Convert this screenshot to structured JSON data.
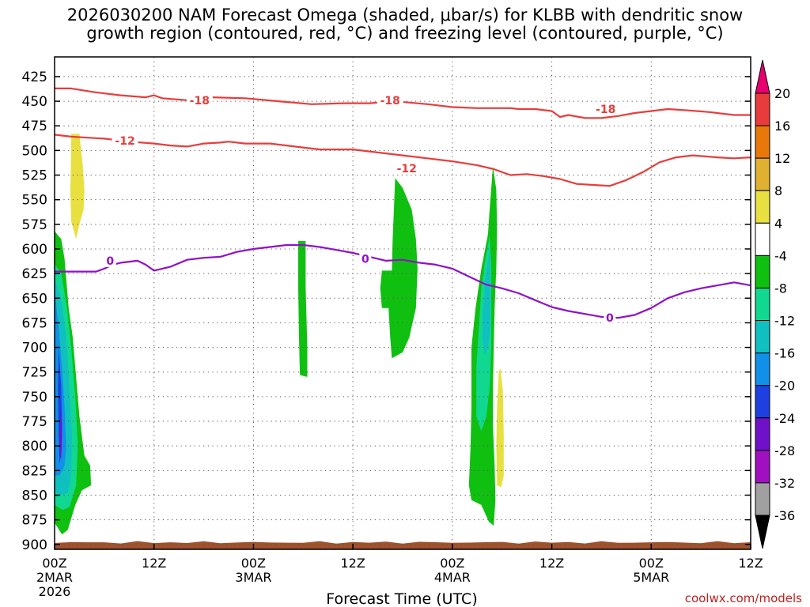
{
  "title": {
    "line1": "2026030200 NAM Forecast Omega (shaded, μbar/s) for KLBB with dendritic snow",
    "line2": "growth region (contoured, red, °C) and freezing level (contoured, purple, °C)"
  },
  "credit": "coolwx.com/models",
  "chart_data": {
    "type": "time-height cross section",
    "title": "2026030200 NAM Forecast Omega (shaded, μbar/s) for KLBB with dendritic snow growth region (contoured, red, °C) and freezing level (contoured, purple, °C)",
    "xlabel": "Forecast Time (UTC)",
    "ylabel": "",
    "xlim_hours": [
      0,
      84
    ],
    "ylim_mb": [
      405,
      905
    ],
    "y_ticks": [
      "425",
      "450",
      "475",
      "500",
      "525",
      "550",
      "575",
      "600",
      "625",
      "650",
      "675",
      "700",
      "725",
      "750",
      "775",
      "800",
      "825",
      "850",
      "875",
      "900"
    ],
    "x_ticks": [
      {
        "hour": 0,
        "l1": "00Z",
        "l2": "2MAR",
        "l3": "2026"
      },
      {
        "hour": 12,
        "l1": "12Z",
        "l2": "",
        "l3": ""
      },
      {
        "hour": 24,
        "l1": "00Z",
        "l2": "3MAR",
        "l3": ""
      },
      {
        "hour": 36,
        "l1": "12Z",
        "l2": "",
        "l3": ""
      },
      {
        "hour": 48,
        "l1": "00Z",
        "l2": "4MAR",
        "l3": ""
      },
      {
        "hour": 60,
        "l1": "12Z",
        "l2": "",
        "l3": ""
      },
      {
        "hour": 72,
        "l1": "00Z",
        "l2": "5MAR",
        "l3": ""
      },
      {
        "hour": 84,
        "l1": "12Z",
        "l2": "",
        "l3": ""
      }
    ],
    "colorbar": {
      "labels": [
        "20",
        "16",
        "12",
        "8",
        "4",
        "-4",
        "-8",
        "-12",
        "-16",
        "-20",
        "-24",
        "-28",
        "-32",
        "-36"
      ],
      "colors": [
        "#e8006e",
        "#e83c3c",
        "#e8780a",
        "#e0b030",
        "#e8e040",
        "#ffffff",
        "#10c010",
        "#10d890",
        "#10c0c0",
        "#1090e8",
        "#1e40e0",
        "#7010c8",
        "#a010c0",
        "#a0a0a0",
        "#000000"
      ]
    },
    "contours": [
      {
        "name": "-18",
        "color": "#e83c3c",
        "label": "-18",
        "points": [
          [
            0,
            437
          ],
          [
            2,
            437
          ],
          [
            5,
            441
          ],
          [
            8,
            444
          ],
          [
            11,
            446
          ],
          [
            12,
            444
          ],
          [
            13,
            447
          ],
          [
            16,
            449
          ],
          [
            19,
            446
          ],
          [
            23,
            447
          ],
          [
            27,
            450
          ],
          [
            31,
            453
          ],
          [
            35,
            452
          ],
          [
            38,
            452
          ],
          [
            41,
            450
          ],
          [
            45,
            453
          ],
          [
            48,
            456
          ],
          [
            51,
            457
          ],
          [
            55,
            457
          ],
          [
            56,
            458
          ],
          [
            58,
            458
          ],
          [
            60,
            460
          ],
          [
            61,
            466
          ],
          [
            62,
            464
          ],
          [
            64,
            467
          ],
          [
            66,
            467
          ],
          [
            68,
            465
          ],
          [
            70,
            462
          ],
          [
            72,
            460
          ],
          [
            74,
            458
          ],
          [
            76,
            459
          ],
          [
            79,
            461
          ],
          [
            82,
            464
          ],
          [
            84,
            464
          ]
        ],
        "label_at": [
          [
            17.5,
            449
          ],
          [
            40.5,
            449
          ],
          [
            66.5,
            458
          ]
        ]
      },
      {
        "name": "-12",
        "color": "#e83c3c",
        "label": "-12",
        "points": [
          [
            0,
            484
          ],
          [
            2,
            486
          ],
          [
            4,
            487
          ],
          [
            6,
            488
          ],
          [
            9,
            491
          ],
          [
            12,
            493
          ],
          [
            14,
            495
          ],
          [
            16,
            496
          ],
          [
            18,
            493
          ],
          [
            20,
            492
          ],
          [
            21,
            491
          ],
          [
            23,
            493
          ],
          [
            26,
            493
          ],
          [
            29,
            496
          ],
          [
            32,
            499
          ],
          [
            36,
            499
          ],
          [
            39,
            502
          ],
          [
            42,
            505
          ],
          [
            45,
            508
          ],
          [
            48,
            511
          ],
          [
            51,
            515
          ],
          [
            53,
            519
          ],
          [
            55,
            525
          ],
          [
            57,
            524
          ],
          [
            59,
            526
          ],
          [
            61,
            529
          ],
          [
            63,
            534
          ],
          [
            65,
            535
          ],
          [
            67,
            536
          ],
          [
            69,
            530
          ],
          [
            71,
            522
          ],
          [
            73,
            512
          ],
          [
            75,
            507
          ],
          [
            77,
            505
          ],
          [
            80,
            507
          ],
          [
            82,
            508
          ],
          [
            84,
            507
          ]
        ],
        "label_at": [
          [
            8.5,
            490
          ],
          [
            42.5,
            518
          ]
        ]
      },
      {
        "name": "0",
        "color": "#9010c8",
        "label": "0",
        "points": [
          [
            0,
            623
          ],
          [
            2,
            623
          ],
          [
            5,
            623
          ],
          [
            6,
            620
          ],
          [
            7,
            616
          ],
          [
            8,
            614
          ],
          [
            10,
            612
          ],
          [
            11,
            616
          ],
          [
            12,
            622
          ],
          [
            14,
            618
          ],
          [
            16,
            611
          ],
          [
            18,
            609
          ],
          [
            20,
            608
          ],
          [
            22,
            603
          ],
          [
            24,
            600
          ],
          [
            26,
            598
          ],
          [
            28,
            596
          ],
          [
            30,
            596
          ],
          [
            32,
            598
          ],
          [
            34,
            601
          ],
          [
            36,
            604
          ],
          [
            38,
            608
          ],
          [
            40,
            612
          ],
          [
            42,
            611
          ],
          [
            44,
            614
          ],
          [
            46,
            616
          ],
          [
            48,
            620
          ],
          [
            50,
            628
          ],
          [
            52,
            636
          ],
          [
            54,
            640
          ],
          [
            56,
            645
          ],
          [
            58,
            652
          ],
          [
            60,
            659
          ],
          [
            62,
            663
          ],
          [
            64,
            666
          ],
          [
            66,
            669
          ],
          [
            68,
            670
          ],
          [
            70,
            667
          ],
          [
            72,
            660
          ],
          [
            74,
            650
          ],
          [
            76,
            644
          ],
          [
            78,
            640
          ],
          [
            80,
            637
          ],
          [
            82,
            634
          ],
          [
            84,
            637
          ]
        ],
        "label_at": [
          [
            6.7,
            612
          ],
          [
            37.5,
            610
          ],
          [
            67,
            670
          ]
        ]
      }
    ],
    "omega_regions": [
      {
        "name": "plus4-yellow-1",
        "color": "#e8e040",
        "points": [
          [
            2,
            483
          ],
          [
            3,
            483
          ],
          [
            3.4,
            515
          ],
          [
            3.6,
            540
          ],
          [
            3.5,
            560
          ],
          [
            3,
            575
          ],
          [
            2.6,
            590
          ],
          [
            2,
            572
          ],
          [
            1.9,
            540
          ],
          [
            2,
            500
          ]
        ]
      },
      {
        "name": "plus4-yellow-2",
        "color": "#e8e040",
        "points": [
          [
            53.8,
            721
          ],
          [
            54.1,
            745
          ],
          [
            54.2,
            790
          ],
          [
            54.2,
            830
          ],
          [
            53.9,
            842
          ],
          [
            53.4,
            840
          ],
          [
            53.3,
            800
          ],
          [
            53.4,
            760
          ],
          [
            53.6,
            725
          ]
        ]
      },
      {
        "name": "minus4-green-left",
        "color": "#10c010",
        "points": [
          [
            0,
            582
          ],
          [
            0.8,
            590
          ],
          [
            1.2,
            610
          ],
          [
            1.4,
            630
          ],
          [
            1.7,
            660
          ],
          [
            2.2,
            690
          ],
          [
            2.6,
            730
          ],
          [
            3,
            770
          ],
          [
            3.6,
            810
          ],
          [
            4.3,
            820
          ],
          [
            4.4,
            840
          ],
          [
            3.3,
            845
          ],
          [
            2.5,
            860
          ],
          [
            1.6,
            885
          ],
          [
            0.9,
            890
          ],
          [
            0,
            878
          ]
        ]
      },
      {
        "name": "minus8-teal-left",
        "color": "#10d890",
        "points": [
          [
            0,
            615
          ],
          [
            0.8,
            625
          ],
          [
            1.5,
            660
          ],
          [
            2,
            700
          ],
          [
            2.5,
            750
          ],
          [
            2.8,
            800
          ],
          [
            2.6,
            840
          ],
          [
            1.8,
            862
          ],
          [
            1,
            865
          ],
          [
            0,
            860
          ]
        ]
      },
      {
        "name": "minus12-cyan-left",
        "color": "#10c0c0",
        "points": [
          [
            0,
            630
          ],
          [
            0.8,
            650
          ],
          [
            1.4,
            690
          ],
          [
            1.8,
            740
          ],
          [
            2.1,
            790
          ],
          [
            2,
            830
          ],
          [
            1.6,
            848
          ],
          [
            0.6,
            850
          ],
          [
            0,
            845
          ]
        ]
      },
      {
        "name": "minus16-blue-left",
        "color": "#1090e8",
        "points": [
          [
            0,
            640
          ],
          [
            0.5,
            680
          ],
          [
            0.9,
            720
          ],
          [
            1.2,
            760
          ],
          [
            1.4,
            800
          ],
          [
            1.2,
            820
          ],
          [
            0.6,
            830
          ],
          [
            0,
            830
          ]
        ]
      },
      {
        "name": "minus20-dblue-left",
        "color": "#1e40e0",
        "points": [
          [
            0.5,
            700
          ],
          [
            0.8,
            740
          ],
          [
            0.9,
            780
          ],
          [
            0.8,
            810
          ],
          [
            0.6,
            818
          ],
          [
            0.5,
            790
          ],
          [
            0.4,
            740
          ]
        ]
      },
      {
        "name": "minus24-purple-left",
        "color": "#7010c8",
        "points": [
          [
            0.7,
            760
          ],
          [
            0.9,
            790
          ],
          [
            0.8,
            812
          ],
          [
            0.65,
            810
          ],
          [
            0.62,
            790
          ]
        ]
      },
      {
        "name": "minus4-green-strip",
        "color": "#10c010",
        "points": [
          [
            29.4,
            592
          ],
          [
            30.3,
            592
          ],
          [
            30.3,
            640
          ],
          [
            30.5,
            700
          ],
          [
            30.5,
            730
          ],
          [
            29.6,
            728
          ],
          [
            29.5,
            690
          ],
          [
            29.4,
            640
          ]
        ]
      },
      {
        "name": "minus4-green-mid",
        "color": "#10c010",
        "points": [
          [
            41.1,
            528
          ],
          [
            42,
            538
          ],
          [
            43.1,
            560
          ],
          [
            43.6,
            590
          ],
          [
            43.8,
            620
          ],
          [
            43.6,
            660
          ],
          [
            42.8,
            690
          ],
          [
            42,
            705
          ],
          [
            40.7,
            711
          ],
          [
            40.5,
            690
          ],
          [
            40.3,
            660
          ],
          [
            39.5,
            660
          ],
          [
            39.3,
            640
          ],
          [
            39.5,
            622
          ],
          [
            40.7,
            622
          ],
          [
            40.8,
            590
          ]
        ]
      },
      {
        "name": "minus4-green-right",
        "color": "#10c010",
        "points": [
          [
            52.9,
            516
          ],
          [
            53.3,
            540
          ],
          [
            53.4,
            580
          ],
          [
            53.3,
            620
          ],
          [
            53.1,
            660
          ],
          [
            53,
            700
          ],
          [
            52.9,
            740
          ],
          [
            52.9,
            780
          ],
          [
            53.1,
            820
          ],
          [
            53.2,
            855
          ],
          [
            53,
            881
          ],
          [
            52.4,
            877
          ],
          [
            51.5,
            860
          ],
          [
            50.3,
            855
          ],
          [
            50,
            840
          ],
          [
            50.2,
            800
          ],
          [
            50.3,
            760
          ],
          [
            50.3,
            700
          ],
          [
            50.8,
            660
          ],
          [
            51.5,
            620
          ],
          [
            52.3,
            585
          ],
          [
            52.5,
            560
          ]
        ]
      },
      {
        "name": "minus8-teal-right",
        "color": "#10d890",
        "points": [
          [
            52.5,
            587
          ],
          [
            52.7,
            620
          ],
          [
            52.7,
            660
          ],
          [
            52.7,
            700
          ],
          [
            52.5,
            740
          ],
          [
            52.1,
            770
          ],
          [
            51.5,
            785
          ],
          [
            50.9,
            770
          ],
          [
            50.9,
            720
          ],
          [
            51.2,
            680
          ],
          [
            51.5,
            640
          ],
          [
            52,
            610
          ]
        ]
      },
      {
        "name": "minus12-cyan-right",
        "color": "#10c0c0",
        "points": [
          [
            52.5,
            598
          ],
          [
            52.6,
            630
          ],
          [
            52.6,
            680
          ],
          [
            52.3,
            700
          ],
          [
            51.9,
            708
          ],
          [
            51.6,
            690
          ],
          [
            51.7,
            660
          ],
          [
            52,
            630
          ]
        ]
      }
    ],
    "terrain": {
      "name": "surface",
      "color": "#a0522d",
      "top_mb": 898,
      "bottom_mb": 906
    }
  }
}
